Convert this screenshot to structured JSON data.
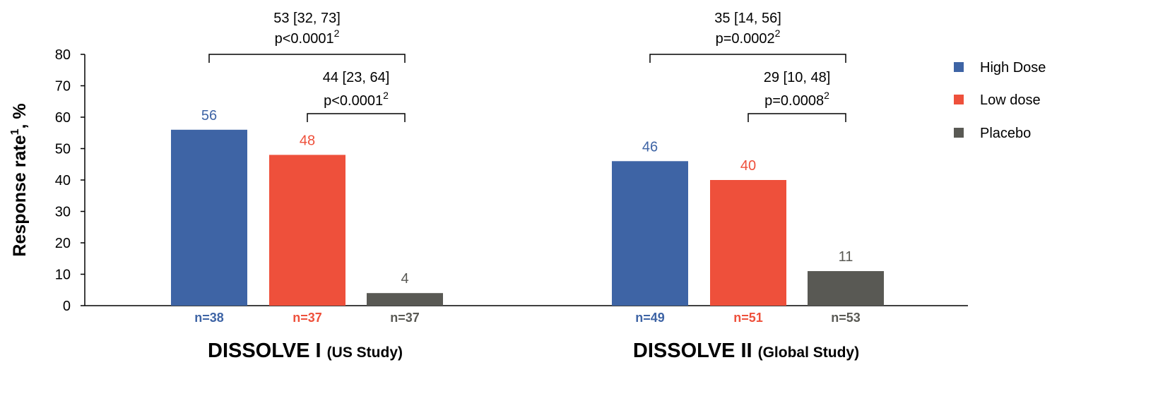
{
  "chart_data": {
    "type": "bar",
    "title": "",
    "ylabel": "Response rate",
    "ylabel_sup": "1",
    "ylabel_suffix": ", %",
    "ylim": [
      0,
      80
    ],
    "yticks": [
      "0",
      "10",
      "20",
      "30",
      "40",
      "50",
      "60",
      "70",
      "80"
    ],
    "grid": false,
    "legend_position": "right",
    "series": [
      {
        "name": "High Dose",
        "color": "#3E64A5",
        "values": [
          56,
          46
        ],
        "n": [
          "n=38",
          "n=49"
        ]
      },
      {
        "name": "Low dose",
        "color": "#EE503B",
        "values": [
          48,
          40
        ],
        "n": [
          "n=37",
          "n=51"
        ]
      },
      {
        "name": "Placebo",
        "color": "#595954",
        "values": [
          4,
          11
        ],
        "n": [
          "n=37",
          "n=53"
        ]
      }
    ],
    "groups": [
      {
        "main": "DISSOLVE I",
        "sub": "(US Study)",
        "comparisons": [
          {
            "from": 0,
            "to": 2,
            "line1": "53 [32, 73]",
            "line2": "p<0.0001",
            "sup": "2"
          },
          {
            "from": 1,
            "to": 2,
            "line1": "44 [23, 64]",
            "line2": "p<0.0001",
            "sup": "2"
          }
        ]
      },
      {
        "main": "DISSOLVE II",
        "sub": "(Global Study)",
        "comparisons": [
          {
            "from": 0,
            "to": 2,
            "line1": "35 [14, 56]",
            "line2": "p=0.0002",
            "sup": "2"
          },
          {
            "from": 1,
            "to": 2,
            "line1": "29 [10, 48]",
            "line2": "p=0.0008",
            "sup": "2"
          }
        ]
      }
    ]
  }
}
